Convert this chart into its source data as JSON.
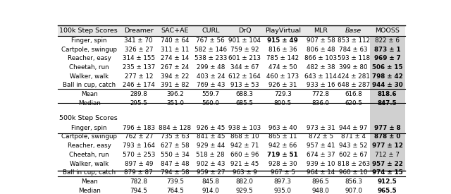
{
  "title_100k": "100k Step Scores",
  "title_500k": "500k Step Scores",
  "columns": [
    "100k Step Scores",
    "Dreamer",
    "SAC+AE",
    "CURL",
    "DrQ",
    "PlayVirtual",
    "MLR",
    "Base",
    "MOOSS"
  ],
  "rows_100k": [
    [
      "Finger, spin",
      "341 ± 70",
      "740 ± 64",
      "767 ± 56",
      "901 ± 104",
      "915 ± 49",
      "907 ± 58",
      "853 ± 112",
      "822 ± 6"
    ],
    [
      "Cartpole, swingup",
      "326 ± 27",
      "311 ± 11",
      "582 ± 146",
      "759 ± 92",
      "816 ± 36",
      "806 ± 48",
      "784 ± 63",
      "873 ± 1"
    ],
    [
      "Reacher, easy",
      "314 ± 155",
      "274 ± 14",
      "538 ± 233",
      "601 ± 213",
      "785 ± 142",
      "866 ± 103",
      "593 ± 118",
      "969 ± 7"
    ],
    [
      "Cheetah, run",
      "235 ± 137",
      "267 ± 24",
      "299 ± 48",
      "344 ± 67",
      "474 ± 50",
      "482 ± 38",
      "399 ± 80",
      "506 ± 15"
    ],
    [
      "Walker, walk",
      "277 ± 12",
      "394 ± 22",
      "403 ± 24",
      "612 ± 164",
      "460 ± 173",
      "643 ± 114",
      "424 ± 281",
      "798 ± 42"
    ],
    [
      "Ball in cup, catch",
      "246 ± 174",
      "391 ± 82",
      "769 ± 43",
      "913 ± 53",
      "926 ± 31",
      "933 ± 16",
      "648 ± 287",
      "944 ± 30"
    ]
  ],
  "mean_100k": [
    "Mean",
    "289.8",
    "396.2",
    "559.7",
    "688.3",
    "729.3",
    "772.8",
    "616.8",
    "818.6"
  ],
  "median_100k": [
    "Median",
    "295.5",
    "351.0",
    "560.0",
    "685.5",
    "800.5",
    "836.0",
    "620.5",
    "847.5"
  ],
  "rows_500k": [
    [
      "Finger, spin",
      "796 ± 183",
      "884 ± 128",
      "926 ± 45",
      "938 ± 103",
      "963 ± 40",
      "973 ± 31",
      "944 ± 97",
      "977 ± 8"
    ],
    [
      "Cartpole, swingup",
      "762 ± 27",
      "735 ± 63",
      "841 ± 45",
      "868 ± 10",
      "865 ± 11",
      "872 ± 5",
      "871 ± 4",
      "878 ± 0"
    ],
    [
      "Reacher, easy",
      "793 ± 164",
      "627 ± 58",
      "929 ± 44",
      "942 ± 71",
      "942 ± 66",
      "957 ± 41",
      "943 ± 52",
      "977 ± 12"
    ],
    [
      "Cheetah, run",
      "570 ± 253",
      "550 ± 34",
      "518 ± 28",
      "660 ± 96",
      "719 ± 51",
      "674 ± 37",
      "602 ± 67",
      "712 ± 7"
    ],
    [
      "Walker, walk",
      "897 ± 49",
      "847 ± 48",
      "902 ± 43",
      "921 ± 45",
      "928 ± 30",
      "939 ± 10",
      "818 ± 263",
      "957 ± 22"
    ],
    [
      "Ball in cup, catch",
      "879 ± 87",
      "794 ± 58",
      "959 ± 27",
      "963 ± 9",
      "967 ± 5",
      "964 ± 14",
      "960 ± 10",
      "974 ± 15"
    ]
  ],
  "mean_500k": [
    "Mean",
    "782.8",
    "739.5",
    "845.8",
    "882.0",
    "897.3",
    "896.5",
    "856.3",
    "912.5"
  ],
  "median_500k": [
    "Median",
    "794.5",
    "764.5",
    "914.0",
    "929.5",
    "935.0",
    "948.0",
    "907.0",
    "965.5"
  ],
  "bold_100k": [
    [
      false,
      false,
      false,
      false,
      true,
      false,
      false,
      false
    ],
    [
      false,
      false,
      false,
      false,
      false,
      false,
      false,
      true
    ],
    [
      false,
      false,
      false,
      false,
      false,
      false,
      false,
      true
    ],
    [
      false,
      false,
      false,
      false,
      false,
      false,
      false,
      true
    ],
    [
      false,
      false,
      false,
      false,
      false,
      false,
      false,
      true
    ],
    [
      false,
      false,
      false,
      false,
      false,
      false,
      false,
      true
    ]
  ],
  "bold_500k": [
    [
      false,
      false,
      false,
      false,
      false,
      false,
      false,
      true
    ],
    [
      false,
      false,
      false,
      false,
      false,
      false,
      false,
      true
    ],
    [
      false,
      false,
      false,
      false,
      false,
      false,
      false,
      true
    ],
    [
      false,
      false,
      false,
      false,
      true,
      false,
      false,
      false
    ],
    [
      false,
      false,
      false,
      false,
      false,
      false,
      false,
      true
    ],
    [
      false,
      false,
      false,
      false,
      false,
      false,
      false,
      true
    ]
  ],
  "bold_mean_100k": [
    false,
    false,
    false,
    false,
    false,
    false,
    false,
    true
  ],
  "bold_median_100k": [
    false,
    false,
    false,
    false,
    false,
    false,
    false,
    true
  ],
  "bold_mean_500k": [
    false,
    false,
    false,
    false,
    false,
    false,
    false,
    true
  ],
  "bold_median_500k": [
    false,
    false,
    false,
    false,
    false,
    false,
    false,
    true
  ],
  "mooss_bg": "#d0d0d0",
  "header_bg": "#e8e8e8"
}
